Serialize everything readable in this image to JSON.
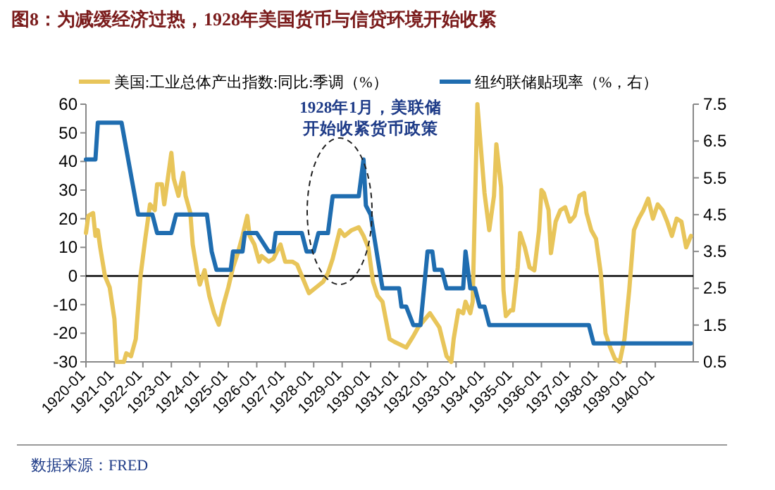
{
  "chart_data": {
    "type": "line",
    "title": "图8：为减缓经济过热，1928年美国货币与信贷环境开始收紧",
    "xlim": [
      "1920-01",
      "1941-05"
    ],
    "xticks": [
      "1920-01",
      "1921-01",
      "1922-01",
      "1923-01",
      "1924-01",
      "1925-01",
      "1926-01",
      "1927-01",
      "1928-01",
      "1929-01",
      "1930-01",
      "1931-01",
      "1932-01",
      "1933-01",
      "1934-01",
      "1935-01",
      "1936-01",
      "1937-01",
      "1938-01",
      "1939-01",
      "1940-01"
    ],
    "ylim": [
      -30,
      60
    ],
    "yticks": [
      -30,
      -20,
      -10,
      0,
      10,
      20,
      30,
      40,
      50,
      60
    ],
    "y2lim": [
      0.5,
      7.5
    ],
    "y2ticks": [
      0.5,
      1.5,
      2.5,
      3.5,
      4.5,
      5.5,
      6.5,
      7.5
    ],
    "grid": false,
    "legend": "top",
    "marker": "none",
    "line_style": "solid",
    "ref_lines": [
      {
        "axis": "y",
        "value": 0,
        "color": "#000000"
      }
    ],
    "annotations": [
      "1928年1月，美联储",
      "开始收紧货币政策",
      "数据来源：FRED"
    ],
    "series": [
      {
        "name": "美国:工业总体产出指数:同比:季调（%）",
        "color": "#E8C55A",
        "x": [
          "1920-01",
          "1920-02",
          "1920-04",
          "1920-05",
          "1920-06",
          "1920-07",
          "1920-09",
          "1920-11",
          "1921-01",
          "1921-02",
          "1921-05",
          "1921-06",
          "1921-08",
          "1921-10",
          "1921-12",
          "1922-02",
          "1922-04",
          "1922-06",
          "1922-07",
          "1922-09",
          "1922-10",
          "1922-11",
          "1923-01",
          "1923-02",
          "1923-04",
          "1923-06",
          "1923-07",
          "1923-09",
          "1923-10",
          "1923-12",
          "1924-01",
          "1924-03",
          "1924-05",
          "1924-07",
          "1924-09",
          "1924-11",
          "1925-01",
          "1925-03",
          "1925-05",
          "1925-07",
          "1925-09",
          "1925-10",
          "1925-12",
          "1926-02",
          "1926-03",
          "1926-06",
          "1926-08",
          "1926-11",
          "1927-01",
          "1927-04",
          "1927-06",
          "1927-08",
          "1927-11",
          "1928-02",
          "1928-05",
          "1928-07",
          "1928-09",
          "1928-12",
          "1929-02",
          "1929-05",
          "1929-08",
          "1929-10",
          "1929-12",
          "1930-02",
          "1930-04",
          "1930-06",
          "1930-09",
          "1930-11",
          "1931-04",
          "1931-07",
          "1931-09",
          "1931-12",
          "1932-02",
          "1932-06",
          "1932-09",
          "1932-11",
          "1932-12",
          "1933-02",
          "1933-04",
          "1933-05",
          "1933-07",
          "1933-08",
          "1933-10",
          "1934-01",
          "1934-03",
          "1934-05",
          "1934-06",
          "1934-08",
          "1934-09",
          "1934-10",
          "1934-12",
          "1935-01",
          "1935-03",
          "1935-04",
          "1935-06",
          "1935-08",
          "1935-10",
          "1935-12",
          "1936-01",
          "1936-02",
          "1936-04",
          "1936-05",
          "1936-07",
          "1936-09",
          "1936-11",
          "1937-01",
          "1937-03",
          "1937-05",
          "1937-07",
          "1937-08",
          "1937-10",
          "1937-12",
          "1938-02",
          "1938-04",
          "1938-06",
          "1938-08",
          "1938-10",
          "1938-12",
          "1939-02",
          "1939-04",
          "1939-06",
          "1939-08",
          "1939-10",
          "1939-12",
          "1940-02",
          "1940-04",
          "1940-06",
          "1940-08",
          "1940-10",
          "1940-12",
          "1941-02",
          "1941-04"
        ],
        "values": [
          15,
          21,
          22,
          14,
          16,
          10,
          0,
          -4,
          -15,
          -30,
          -30,
          -27,
          -28,
          -22,
          0,
          13,
          25,
          23,
          32,
          32,
          25,
          31,
          43,
          34,
          28,
          36,
          28,
          22,
          11,
          1,
          -3,
          2,
          -7,
          -13,
          -17,
          -10,
          -4,
          3,
          8,
          14,
          21,
          14,
          11,
          5,
          7,
          5,
          6,
          11,
          5,
          5,
          4,
          0,
          -6,
          -4,
          -2,
          1,
          6,
          16,
          14,
          16,
          17,
          14,
          10,
          -2,
          -7,
          -9,
          -22,
          -23,
          -25,
          -21,
          -18,
          -15,
          -13,
          -18,
          -28,
          -30,
          -22,
          -12,
          -13,
          -9,
          -13,
          -9,
          60,
          29,
          16,
          28,
          46,
          31,
          -5,
          -14,
          -12,
          -12,
          3,
          15,
          10,
          3,
          2,
          16,
          30,
          29,
          23,
          8,
          19,
          23,
          24,
          19,
          21,
          28,
          29,
          22,
          16,
          13,
          1,
          -20,
          -25,
          -29,
          -30,
          -22,
          -5,
          16,
          20,
          23,
          27,
          20,
          25,
          23,
          19,
          14,
          20,
          19,
          10,
          14
        ]
      },
      {
        "name": "纽约联储贴现率（%，右）",
        "color": "#1F6DB0",
        "axis": "y2",
        "x": [
          "1920-01",
          "1920-05",
          "1920-06",
          "1921-04",
          "1921-11",
          "1922-05",
          "1922-07",
          "1923-01",
          "1923-03",
          "1924-04",
          "1924-06",
          "1924-08",
          "1925-02",
          "1925-03",
          "1925-07",
          "1925-08",
          "1926-01",
          "1926-06",
          "1926-08",
          "1926-09",
          "1927-08",
          "1927-10",
          "1928-01",
          "1928-03",
          "1928-07",
          "1928-09",
          "1929-08",
          "1929-10",
          "1929-11",
          "1930-01",
          "1930-06",
          "1931-01",
          "1931-02",
          "1931-04",
          "1931-07",
          "1931-10",
          "1932-01",
          "1932-03",
          "1932-04",
          "1932-07",
          "1932-09",
          "1933-04",
          "1933-05",
          "1933-07",
          "1933-09",
          "1933-11",
          "1934-01",
          "1934-03",
          "1937-09",
          "1937-11",
          "1941-04"
        ],
        "values": [
          6.0,
          6.0,
          7.0,
          7.0,
          4.5,
          4.5,
          4.0,
          4.0,
          4.5,
          4.5,
          3.5,
          3.0,
          3.0,
          3.5,
          3.5,
          4.0,
          4.0,
          3.5,
          3.5,
          4.0,
          4.0,
          3.5,
          3.5,
          4.0,
          4.0,
          5.0,
          5.0,
          6.0,
          4.75,
          4.5,
          2.5,
          2.5,
          2.0,
          2.0,
          1.5,
          1.5,
          3.5,
          3.5,
          3.0,
          3.0,
          2.5,
          2.5,
          3.5,
          2.5,
          2.5,
          2.0,
          2.0,
          1.5,
          1.5,
          1.0,
          1.0
        ]
      }
    ]
  }
}
